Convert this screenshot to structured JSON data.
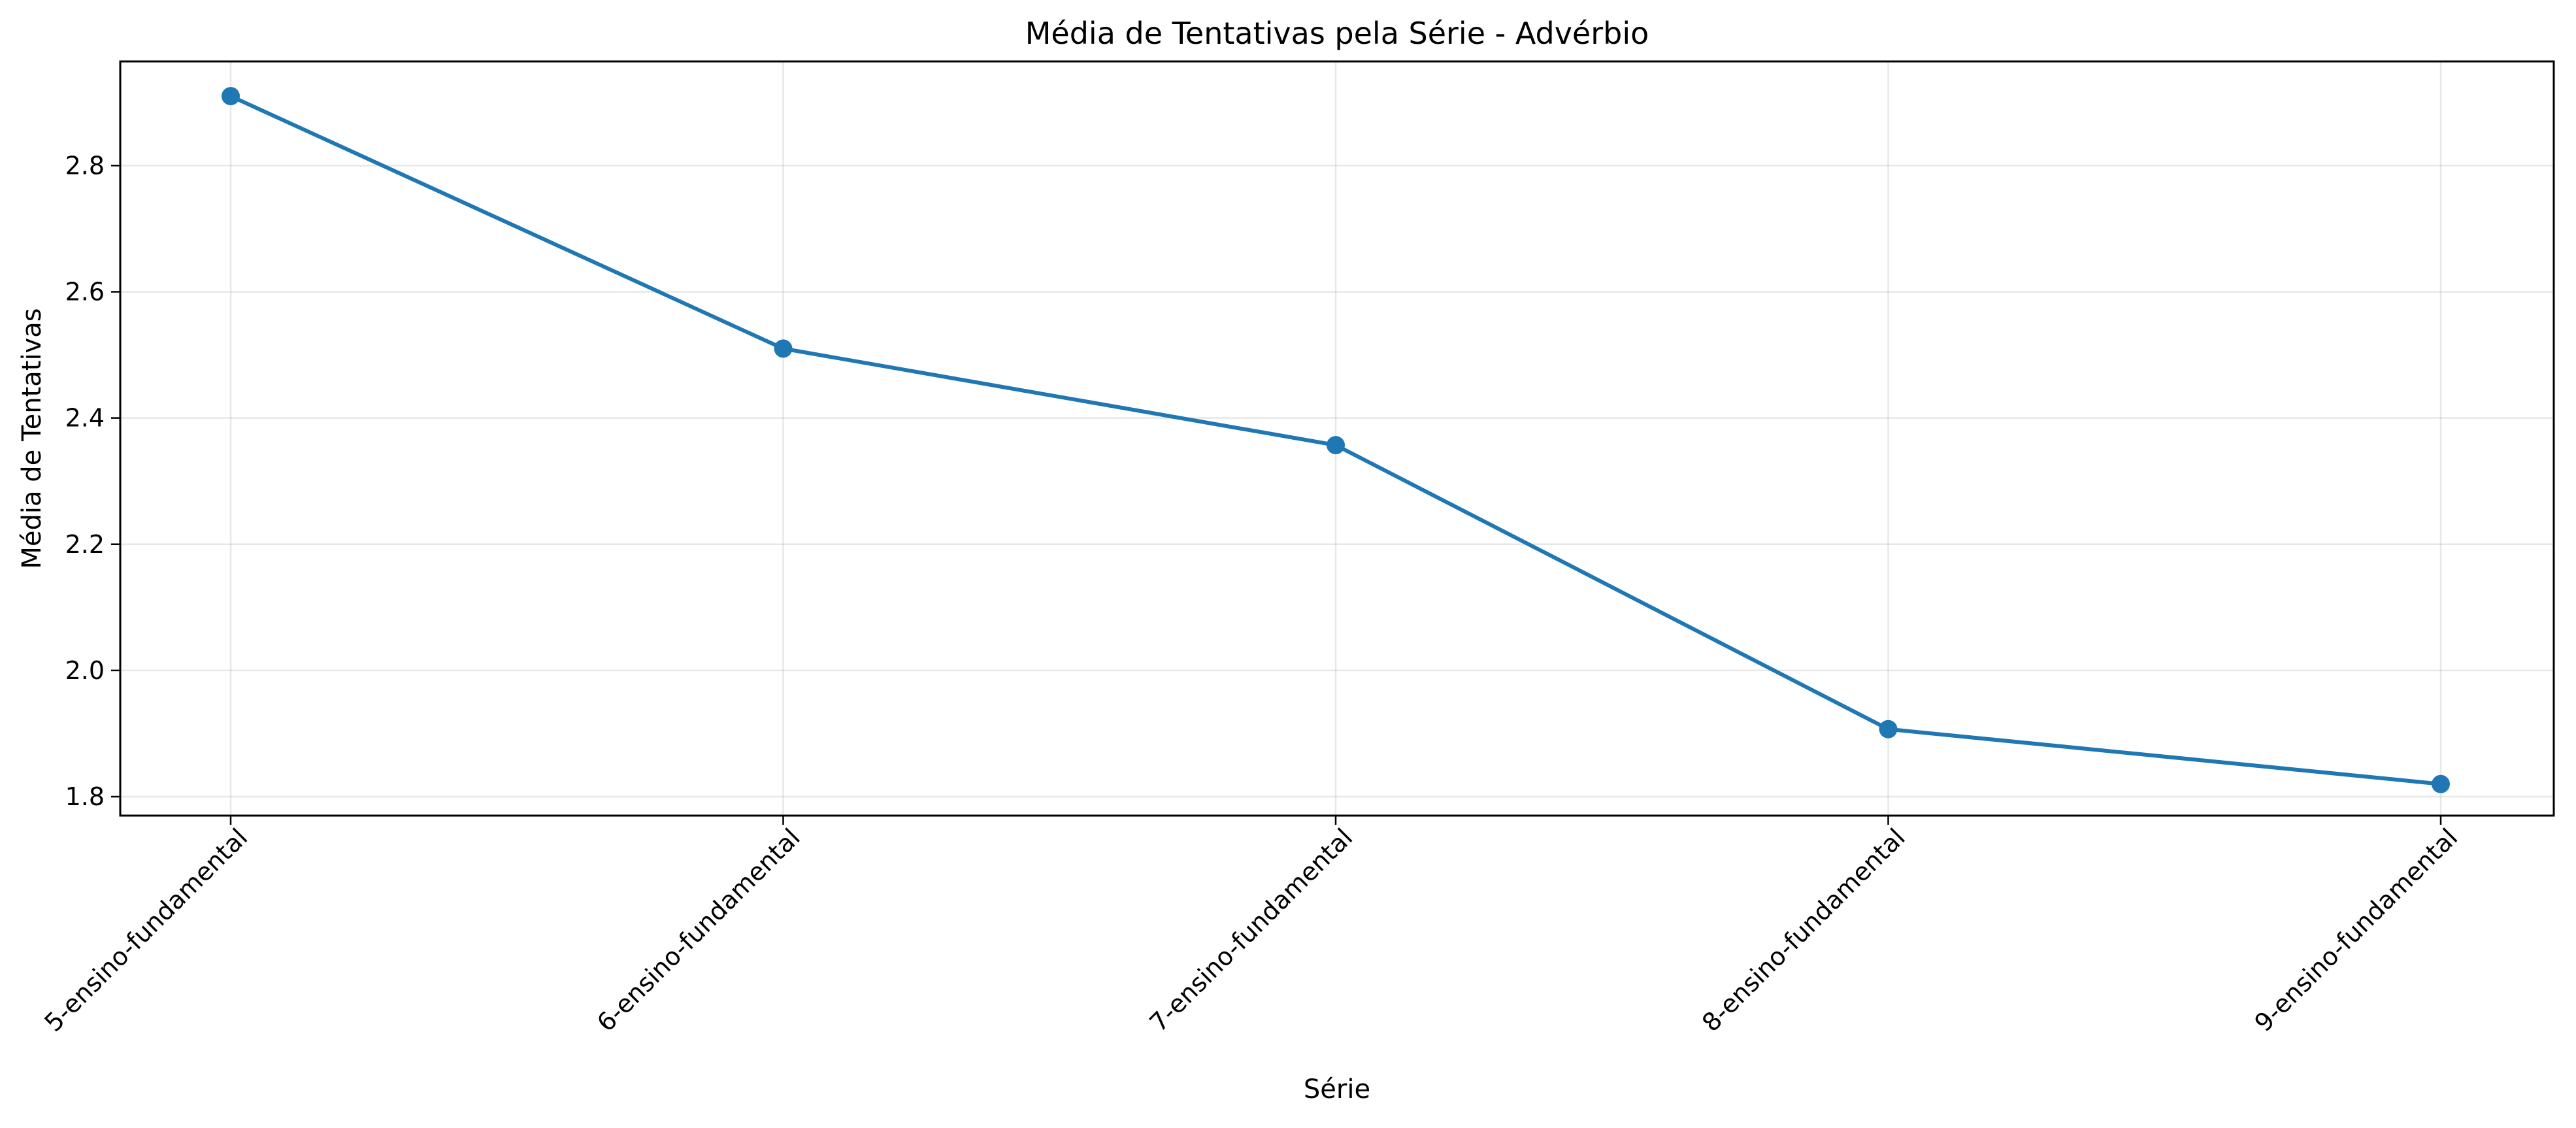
{
  "chart_data": {
    "type": "line",
    "title": "Média de Tentativas pela Série - Advérbio",
    "xlabel": "Série",
    "ylabel": "Média de Tentativas",
    "categories": [
      "5-ensino-fundamental",
      "6-ensino-fundamental",
      "7-ensino-fundamental",
      "8-ensino-fundamental",
      "9-ensino-fundamental"
    ],
    "series": [
      {
        "values": [
          2.91,
          2.51,
          2.357,
          1.907,
          1.82
        ],
        "color": "#1f77b4",
        "marker": "circle"
      }
    ],
    "ylim": [
      1.77,
      2.965
    ],
    "yticks": [
      1.8,
      2.0,
      2.2,
      2.4,
      2.6,
      2.8
    ],
    "ytick_labels": [
      "1.8",
      "2.0",
      "2.2",
      "2.4",
      "2.6",
      "2.8"
    ],
    "x_tick_rotation": 45,
    "grid": true,
    "legend": "none"
  }
}
